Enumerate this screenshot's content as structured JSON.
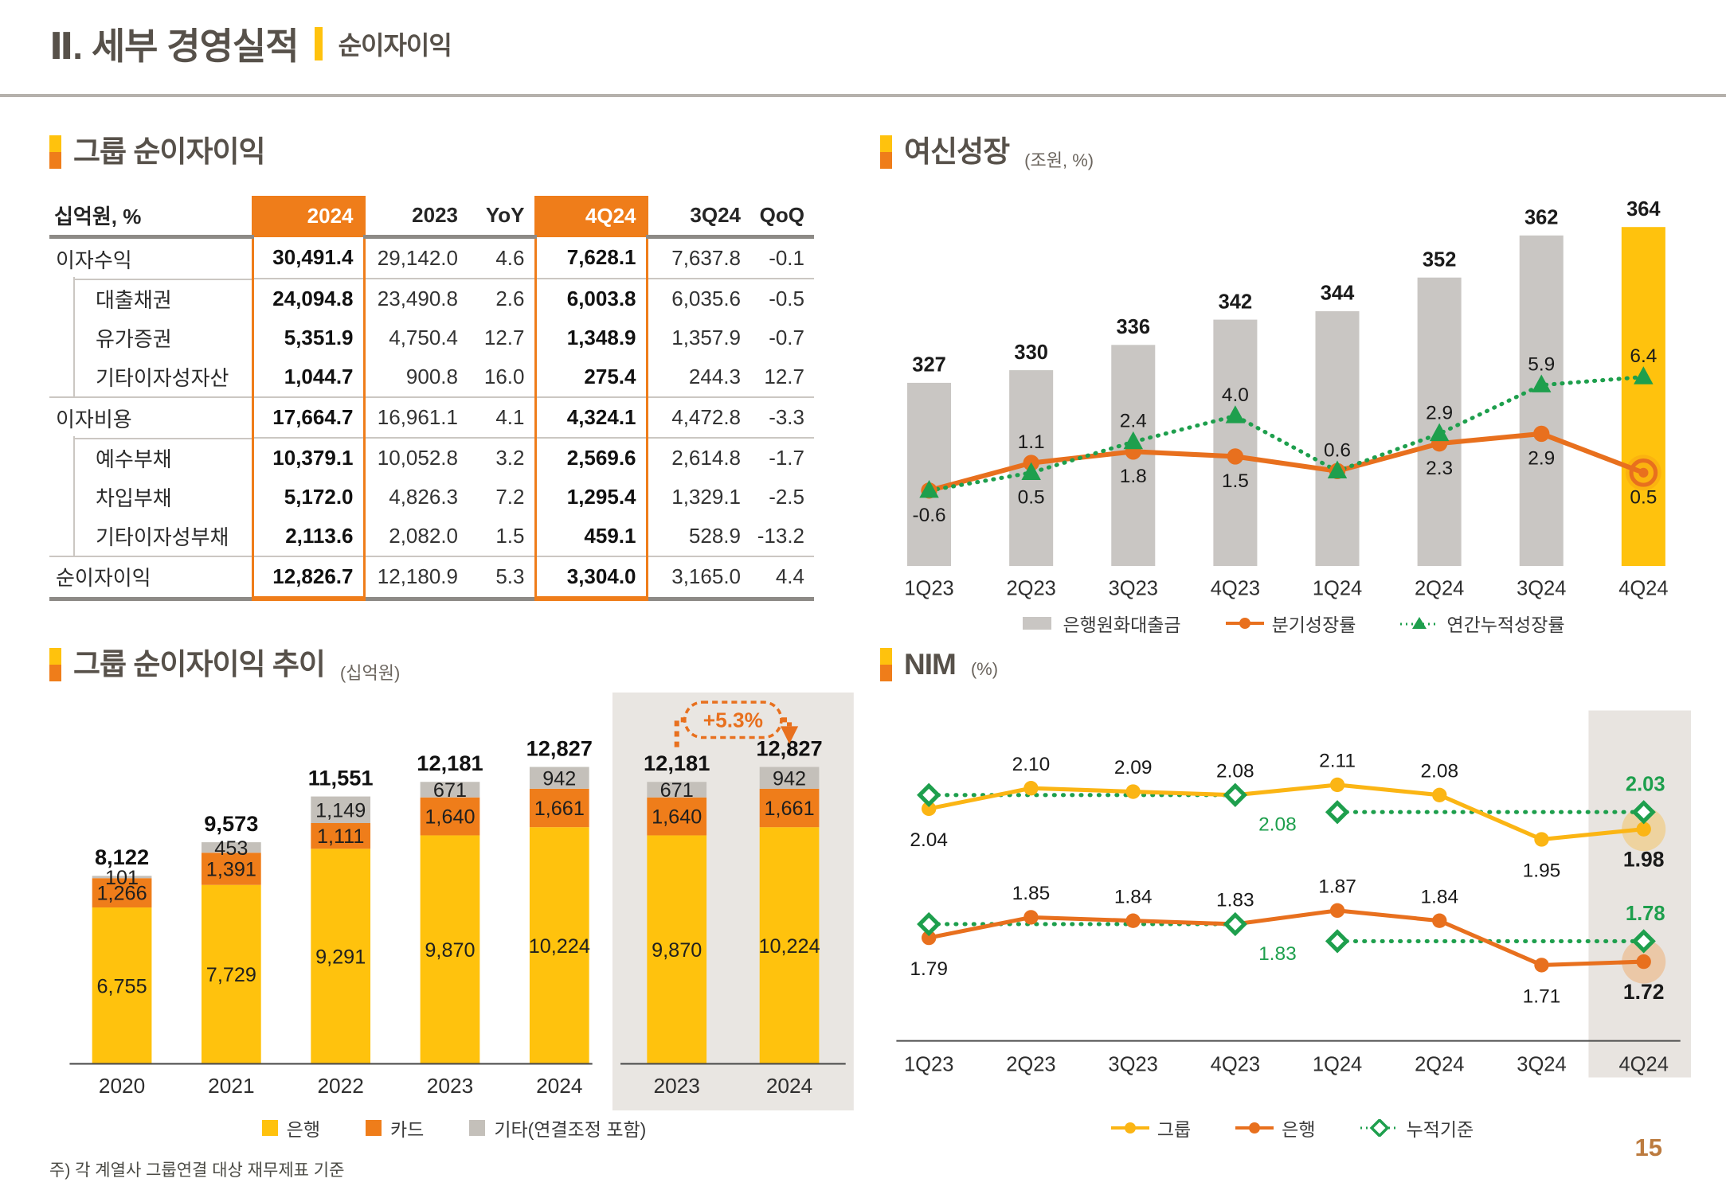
{
  "page": {
    "title_main": "Ⅱ. 세부 경영실적",
    "title_sub": "순이자이익",
    "page_number": "15",
    "footnote": "주) 각 계열사 그룹연결 대상 재무제표 기준"
  },
  "colors": {
    "accent_orange": "#EF7D1A",
    "line_orange": "#E8701E",
    "yellow": "#FFC20D",
    "green": "#1E9F4D",
    "gray_bar": "#C9C6C3",
    "gray_stack": "#C4C0BA",
    "panel_gray": "#E9E6E2",
    "heading": "#57514A",
    "page_number_color": "#BC7B3F"
  },
  "table_section": {
    "title": "그룹 순이자이익",
    "unit_label": "십억원, %",
    "columns": [
      "2024",
      "2023",
      "YoY",
      "4Q24",
      "3Q24",
      "QoQ"
    ],
    "highlight_columns": [
      "2024",
      "4Q24"
    ],
    "rows": [
      {
        "label": "이자수익",
        "indent": false,
        "sep": "none",
        "values": [
          "30,491.4",
          "29,142.0",
          "4.6",
          "7,628.1",
          "7,637.8",
          "-0.1"
        ]
      },
      {
        "label": "대출채권",
        "indent": true,
        "sep": "sub",
        "values": [
          "24,094.8",
          "23,490.8",
          "2.6",
          "6,003.8",
          "6,035.6",
          "-0.5"
        ]
      },
      {
        "label": "유가증권",
        "indent": true,
        "sep": "none",
        "values": [
          "5,351.9",
          "4,750.4",
          "12.7",
          "1,348.9",
          "1,357.9",
          "-0.7"
        ]
      },
      {
        "label": "기타이자성자산",
        "indent": true,
        "sep": "none",
        "values": [
          "1,044.7",
          "900.8",
          "16.0",
          "275.4",
          "244.3",
          "12.7"
        ]
      },
      {
        "label": "이자비용",
        "indent": false,
        "sep": "full",
        "values": [
          "17,664.7",
          "16,961.1",
          "4.1",
          "4,324.1",
          "4,472.8",
          "-3.3"
        ]
      },
      {
        "label": "예수부채",
        "indent": true,
        "sep": "sub",
        "values": [
          "10,379.1",
          "10,052.8",
          "3.2",
          "2,569.6",
          "2,614.8",
          "-1.7"
        ]
      },
      {
        "label": "차입부채",
        "indent": true,
        "sep": "none",
        "values": [
          "5,172.0",
          "4,826.3",
          "7.2",
          "1,295.4",
          "1,329.1",
          "-2.5"
        ]
      },
      {
        "label": "기타이자성부채",
        "indent": true,
        "sep": "none",
        "values": [
          "2,113.6",
          "2,082.0",
          "1.5",
          "459.1",
          "528.9",
          "-13.2"
        ]
      },
      {
        "label": "순이자이익",
        "indent": false,
        "sep": "full",
        "last": true,
        "values": [
          "12,826.7",
          "12,180.9",
          "5.3",
          "3,304.0",
          "3,165.0",
          "4.4"
        ]
      }
    ]
  },
  "chart_data": [
    {
      "id": "loan_growth",
      "type": "bar+line",
      "title": "여신성장",
      "unit": "(조원, %)",
      "categories": [
        "1Q23",
        "2Q23",
        "3Q23",
        "4Q23",
        "1Q24",
        "2Q24",
        "3Q24",
        "4Q24"
      ],
      "bars": {
        "name": "은행원화대출금",
        "values": [
          327,
          330,
          336,
          342,
          344,
          352,
          362,
          364
        ],
        "labels": [
          "327",
          "330",
          "336",
          "342",
          "344",
          "352",
          "362",
          "364"
        ],
        "color": "#C9C6C3",
        "highlight_index": 7,
        "highlight_color": "#FFC20D"
      },
      "series": [
        {
          "name": "분기성장률",
          "marker": "circle",
          "color": "#E8701E",
          "values": [
            -0.6,
            1.1,
            1.8,
            1.5,
            0.6,
            2.3,
            2.9,
            0.5
          ],
          "labels": [
            "-0.6",
            "1.1",
            "1.8",
            "1.5",
            "0.6",
            "2.3",
            "2.9",
            "0.5"
          ],
          "label_pos": [
            "below",
            "above",
            "below",
            "below",
            "above",
            "below",
            "below",
            "below"
          ]
        },
        {
          "name": "연간누적성장률",
          "marker": "triangle",
          "dashed": true,
          "color": "#1E9F4D",
          "values": [
            -0.6,
            0.5,
            2.4,
            4.0,
            0.6,
            2.9,
            5.9,
            6.4
          ],
          "labels": [
            null,
            "0.5",
            "2.4",
            "4.0",
            null,
            "2.9",
            "5.9",
            "6.4"
          ],
          "label_pos": [
            null,
            "below",
            "above",
            "above",
            null,
            "above",
            "above",
            "above"
          ]
        }
      ],
      "legend": [
        {
          "swatch": "bar",
          "color": "#C9C6C3",
          "label": "은행원화대출금"
        },
        {
          "swatch": "line-circle",
          "color": "#E8701E",
          "label": "분기성장률"
        },
        {
          "swatch": "dashed-triangle",
          "color": "#1E9F4D",
          "label": "연간누적성장률"
        }
      ]
    },
    {
      "id": "nii_trend",
      "type": "stacked-bar",
      "title": "그룹 순이자이익 추이",
      "unit": "(십억원)",
      "categories": [
        "2020",
        "2021",
        "2022",
        "2023",
        "2024"
      ],
      "series": [
        {
          "name": "은행",
          "color": "#FFC20D",
          "values": [
            6755,
            7729,
            9291,
            9870,
            10224
          ],
          "labels": [
            "6,755",
            "7,729",
            "9,291",
            "9,870",
            "10,224"
          ]
        },
        {
          "name": "카드",
          "color": "#EF7D1A",
          "values": [
            1266,
            1391,
            1111,
            1640,
            1661
          ],
          "labels": [
            "1,266",
            "1,391",
            "1,111",
            "1,640",
            "1,661"
          ]
        },
        {
          "name": "기타(연결조정 포함)",
          "color": "#C4C0BA",
          "values": [
            101,
            453,
            1149,
            671,
            942
          ],
          "labels": [
            "101",
            "453",
            "1,149",
            "671",
            "942"
          ]
        }
      ],
      "totals": [
        "8,122",
        "9,573",
        "11,551",
        "12,181",
        "12,827"
      ],
      "highlight": {
        "indices": [
          3,
          4
        ],
        "callout": "+5.3%",
        "panel_color": "#E9E6E2"
      },
      "legend": [
        {
          "swatch": "square",
          "color": "#FFC20D",
          "label": "은행"
        },
        {
          "swatch": "square",
          "color": "#EF7D1A",
          "label": "카드"
        },
        {
          "swatch": "square",
          "color": "#C4C0BA",
          "label": "기타(연결조정 포함)"
        }
      ]
    },
    {
      "id": "nim",
      "type": "line",
      "title": "NIM",
      "unit": "(%)",
      "categories": [
        "1Q23",
        "2Q23",
        "3Q23",
        "4Q23",
        "1Q24",
        "2Q24",
        "3Q24",
        "4Q24"
      ],
      "series": [
        {
          "name": "그룹",
          "color": "#FBB514",
          "values": [
            2.04,
            2.1,
            2.09,
            2.08,
            2.11,
            2.08,
            1.95,
            1.98
          ],
          "labels": [
            "2.04",
            "2.10",
            "2.09",
            "2.08",
            "2.11",
            "2.08",
            "1.95",
            "1.98"
          ],
          "label_pos": [
            "below",
            "above",
            "above",
            "above",
            "above",
            "above",
            "below",
            "below"
          ]
        },
        {
          "name": "은행",
          "color": "#E8701E",
          "values": [
            1.79,
            1.85,
            1.84,
            1.83,
            1.87,
            1.84,
            1.71,
            1.72
          ],
          "labels": [
            "1.79",
            "1.85",
            "1.84",
            "1.83",
            "1.87",
            "1.84",
            "1.71",
            "1.72"
          ],
          "label_pos": [
            "below",
            "above",
            "above",
            "above",
            "above",
            "above",
            "below",
            "below"
          ]
        }
      ],
      "cumulative": [
        {
          "series": "그룹",
          "from": 0,
          "to": 3,
          "value": 2.08,
          "label": "2.08",
          "label_at": "end-below"
        },
        {
          "series": "그룹",
          "from": 4,
          "to": 7,
          "value": 2.03,
          "label": "2.03",
          "label_at": "end-above"
        },
        {
          "series": "은행",
          "from": 0,
          "to": 3,
          "value": 1.83,
          "label": "1.83",
          "label_at": "end-below"
        },
        {
          "series": "은행",
          "from": 4,
          "to": 7,
          "value": 1.78,
          "label": "1.78",
          "label_at": "end-above"
        }
      ],
      "highlight_index": 7,
      "legend": [
        {
          "swatch": "line-circle",
          "color": "#FBB514",
          "label": "그룹"
        },
        {
          "swatch": "line-circle",
          "color": "#E8701E",
          "label": "은행"
        },
        {
          "swatch": "dashed-diamond",
          "color": "#1E9F4D",
          "label": "누적기준"
        }
      ]
    }
  ]
}
